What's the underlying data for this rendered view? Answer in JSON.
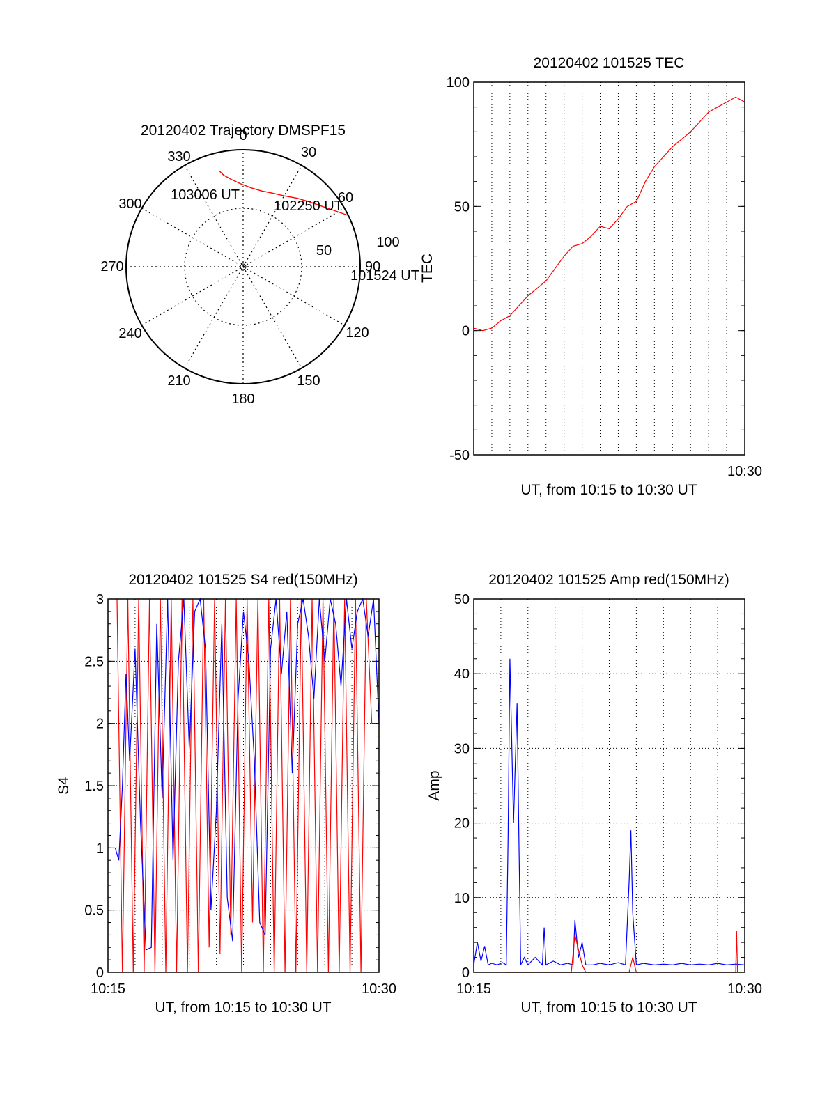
{
  "colors": {
    "red": "#ff0000",
    "blue": "#0000ff",
    "axis": "#000000",
    "grid": "#000000"
  },
  "chart_data": [
    {
      "id": "trajectory",
      "type": "polar",
      "title": "20120402 Trajectory DMSPF15",
      "angle_labels": [
        "0",
        "30",
        "60",
        "90",
        "120",
        "150",
        "180",
        "210",
        "240",
        "270",
        "300",
        "330"
      ],
      "radial_labels": [
        "50",
        "100"
      ],
      "elevation_rings": [
        45
      ],
      "grid": true,
      "start_label": "101524 UT",
      "mid_label": "102250 UT",
      "end_label": "103006 UT",
      "trajectory": [
        {
          "az": 64,
          "el": 0
        },
        {
          "az": 58,
          "el": 8
        },
        {
          "az": 52,
          "el": 14
        },
        {
          "az": 45,
          "el": 19
        },
        {
          "az": 38,
          "el": 23
        },
        {
          "az": 30,
          "el": 27
        },
        {
          "az": 22,
          "el": 29
        },
        {
          "az": 14,
          "el": 30
        },
        {
          "az": 6,
          "el": 29
        },
        {
          "az": -2,
          "el": 26
        },
        {
          "az": -8,
          "el": 22
        },
        {
          "az": -12,
          "el": 18
        },
        {
          "az": -14,
          "el": 14
        }
      ]
    },
    {
      "id": "tec",
      "type": "line",
      "title": "20120402 101525 TEC",
      "xlabel": "UT, from 10:15 to 10:30 UT",
      "ylabel": "TEC",
      "ylim": [
        -50,
        100
      ],
      "yticks": [
        "100",
        "50",
        "0",
        "-50"
      ],
      "xlim": [
        0,
        15
      ],
      "xtick_labels": [
        "10:30"
      ],
      "grid": "vertical-dotted",
      "series": [
        {
          "color": "red",
          "x": [
            0.0,
            0.5,
            1.0,
            1.5,
            2.0,
            2.5,
            3.0,
            3.5,
            4.0,
            4.5,
            5.0,
            5.5,
            6.0,
            6.5,
            7.0,
            7.5,
            8.0,
            8.5,
            9.0,
            9.5,
            10.0,
            10.5,
            11.0,
            11.5,
            12.0,
            12.5,
            13.0,
            13.5,
            14.0,
            14.5,
            15.0
          ],
          "y": [
            1,
            0,
            1,
            4,
            6,
            10,
            14,
            17,
            20,
            25,
            30,
            34,
            35,
            38,
            42,
            41,
            45,
            50,
            52,
            60,
            66,
            70,
            74,
            77,
            80,
            84,
            88,
            90,
            92,
            94,
            92
          ]
        }
      ]
    },
    {
      "id": "s4",
      "type": "line",
      "title": "20120402 101525 S4 red(150MHz)",
      "xlabel": "UT, from 10:15 to 10:30 UT",
      "ylabel": "S4",
      "ylim": [
        0,
        3
      ],
      "yticks": [
        "3",
        "2.5",
        "2",
        "1.5",
        "1",
        "0.5",
        "0"
      ],
      "xlim": [
        0,
        15
      ],
      "xtick_labels": [
        "10:15",
        "10:30"
      ],
      "grid": "dotted",
      "series": [
        {
          "color": "red",
          "x": [
            0.5,
            0.8,
            1.1,
            1.4,
            1.7,
            2.0,
            2.3,
            2.6,
            2.9,
            3.2,
            3.5,
            3.8,
            4.1,
            4.4,
            4.7,
            5.0,
            5.3,
            5.6,
            5.9,
            6.2,
            6.5,
            6.8,
            7.1,
            7.4,
            7.7,
            8.0,
            8.3,
            8.6,
            8.9,
            9.2,
            9.5,
            9.8,
            10.1,
            10.4,
            10.7,
            11.0,
            11.3,
            11.6,
            11.9,
            12.2,
            12.5,
            12.8,
            13.1,
            13.4,
            13.7,
            14.0,
            14.3,
            14.6
          ],
          "y": [
            3,
            0,
            3,
            0,
            3,
            0,
            3,
            0,
            3,
            0,
            3,
            0,
            3,
            0,
            3,
            0,
            3,
            0.2,
            3,
            0.15,
            3,
            0.3,
            3,
            0,
            3,
            0.4,
            3,
            0,
            3,
            0,
            3,
            0,
            3,
            0,
            3,
            0,
            3,
            0,
            3,
            0,
            3,
            0,
            3,
            0,
            3,
            0,
            3,
            2
          ]
        },
        {
          "color": "blue",
          "x": [
            0.4,
            0.6,
            0.8,
            1.0,
            1.2,
            1.5,
            1.8,
            2.1,
            2.4,
            2.7,
            3.0,
            3.3,
            3.6,
            3.9,
            4.2,
            4.5,
            4.8,
            5.1,
            5.4,
            5.7,
            6.0,
            6.3,
            6.6,
            6.9,
            7.2,
            7.5,
            7.8,
            8.1,
            8.4,
            8.7,
            9.0,
            9.3,
            9.6,
            9.9,
            10.2,
            10.5,
            10.8,
            11.1,
            11.4,
            11.7,
            12.0,
            12.3,
            12.6,
            12.9,
            13.2,
            13.5,
            13.8,
            14.1,
            14.4,
            14.7,
            15.0
          ],
          "y": [
            1.0,
            0.9,
            1.5,
            2.4,
            1.7,
            2.6,
            1.2,
            0.18,
            0.2,
            2.8,
            1.4,
            3.0,
            0.9,
            2.5,
            3.0,
            1.8,
            2.9,
            3.0,
            2.6,
            0.5,
            1.3,
            2.8,
            0.6,
            0.25,
            2.2,
            2.9,
            2.5,
            1.7,
            0.4,
            0.3,
            2.6,
            3.0,
            2.4,
            2.9,
            1.6,
            2.8,
            3.0,
            2.7,
            2.2,
            3.0,
            2.5,
            3.0,
            2.8,
            2.3,
            3.0,
            2.6,
            2.9,
            3.0,
            2.7,
            3.0,
            2.0
          ]
        }
      ]
    },
    {
      "id": "amp",
      "type": "line",
      "title": "20120402 101525 Amp red(150MHz)",
      "xlabel": "UT, from 10:15 to 10:30 UT",
      "ylabel": "Amp",
      "ylim": [
        0,
        50
      ],
      "yticks": [
        "50",
        "40",
        "30",
        "20",
        "10",
        "0"
      ],
      "xlim": [
        0,
        15
      ],
      "xtick_labels": [
        "10:15",
        "10:30"
      ],
      "grid": "dotted",
      "series": [
        {
          "color": "blue",
          "x": [
            0.0,
            0.2,
            0.4,
            0.6,
            0.8,
            1.0,
            1.3,
            1.6,
            1.8,
            1.9,
            2.0,
            2.2,
            2.4,
            2.5,
            2.6,
            2.8,
            3.0,
            3.4,
            3.8,
            3.9,
            4.0,
            4.4,
            4.8,
            5.2,
            5.5,
            5.6,
            5.8,
            6.0,
            6.2,
            6.6,
            7.0,
            7.5,
            8.0,
            8.4,
            8.6,
            8.7,
            8.8,
            9.0,
            9.4,
            10.0,
            10.5,
            11.0,
            11.5,
            12.0,
            12.5,
            13.0,
            13.5,
            14.0,
            14.5,
            15.0
          ],
          "y": [
            1.0,
            4.0,
            1.5,
            3.5,
            1.0,
            1.2,
            1.0,
            1.3,
            1.0,
            18.0,
            42.0,
            20.0,
            36.0,
            18.0,
            1.0,
            2.0,
            1.0,
            2.0,
            1.0,
            6.0,
            1.0,
            1.5,
            1.0,
            1.2,
            1.0,
            7.0,
            2.0,
            4.0,
            1.0,
            1.0,
            1.2,
            1.0,
            1.3,
            1.0,
            12.0,
            19.0,
            8.0,
            1.0,
            1.2,
            1.0,
            1.1,
            1.0,
            1.2,
            1.0,
            1.1,
            1.0,
            1.2,
            1.0,
            1.1,
            1.0
          ]
        },
        {
          "color": "red",
          "x": [
            1.8,
            2.6,
            5.4,
            5.6,
            5.8,
            6.0,
            6.2,
            8.6,
            8.8,
            9.0,
            14.5,
            14.55,
            14.6
          ],
          "y": [
            0,
            0,
            0,
            5.0,
            3.0,
            1.0,
            0,
            0,
            2.0,
            0,
            0,
            5.5,
            0
          ]
        }
      ]
    }
  ]
}
